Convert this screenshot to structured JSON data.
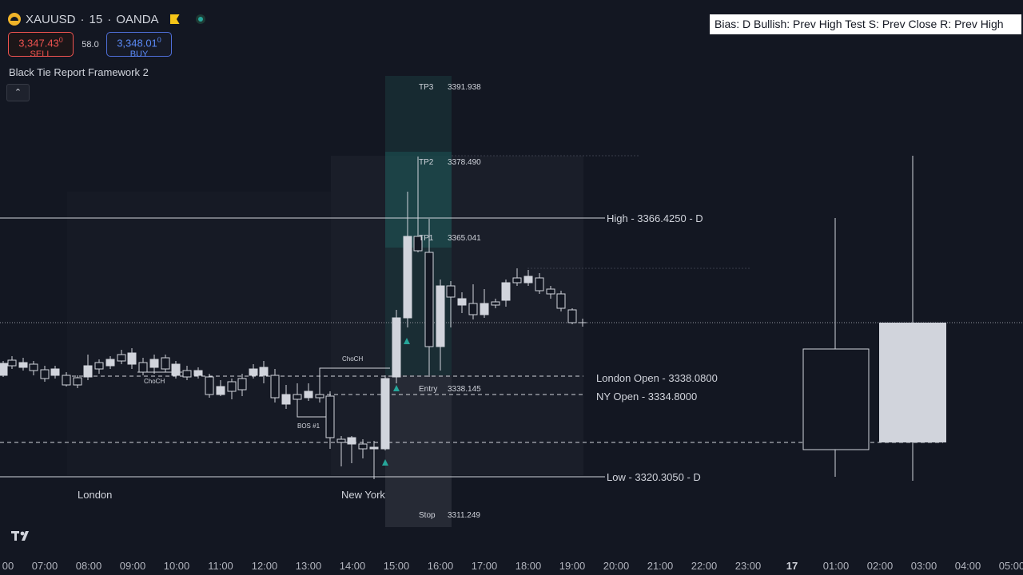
{
  "header": {
    "symbol": "XAUUSD",
    "separator1": "·",
    "interval": "15",
    "separator2": "·",
    "exchange": "OANDA"
  },
  "trade": {
    "sell_price": "3,347.43",
    "sell_sup": "0",
    "sell_label": "SELL",
    "spread": "58.0",
    "buy_price": "3,348.01",
    "buy_sup": "0",
    "buy_label": "BUY"
  },
  "indicator": {
    "title": "Black Tie Report Framework 2",
    "collapse_icon": "chevron-up-icon"
  },
  "bias": {
    "text": "Bias: D  Bullish: Prev High Test  S: Prev Close  R: Prev High"
  },
  "levels": {
    "high_label": "High - 3366.4250 - D",
    "low_label": "Low - 3320.3050 - D",
    "london_open_label": "London Open - 3338.0800",
    "ny_open_label": "NY Open - 3334.8000"
  },
  "position": {
    "tp3": "TP3",
    "tp3_price": "3391.938",
    "tp2": "TP2",
    "tp2_price": "3378.490",
    "tp1": "TP1",
    "tp1_price": "3365.041",
    "entry": "Entry",
    "entry_price": "3338.145",
    "stop": "Stop",
    "stop_price": "3311.249"
  },
  "structure": {
    "choch_upper": "ChoCH",
    "choch_lower": "ChoCH",
    "bos": "BOS #1"
  },
  "sessions": {
    "london": "London",
    "new_york": "New York"
  },
  "time_axis": [
    "00",
    "07:00",
    "08:00",
    "09:00",
    "10:00",
    "11:00",
    "12:00",
    "13:00",
    "14:00",
    "15:00",
    "16:00",
    "17:00",
    "18:00",
    "19:00",
    "20:00",
    "21:00",
    "22:00",
    "23:00",
    "17",
    "01:00",
    "02:00",
    "03:00",
    "04:00",
    "05:00"
  ],
  "colors": {
    "background": "#131722",
    "candle_up": "#d1d4dc",
    "target_zone": "#26a69a",
    "sell": "#ef5350",
    "buy": "#5b8af7",
    "marker": "#26a69a"
  }
}
